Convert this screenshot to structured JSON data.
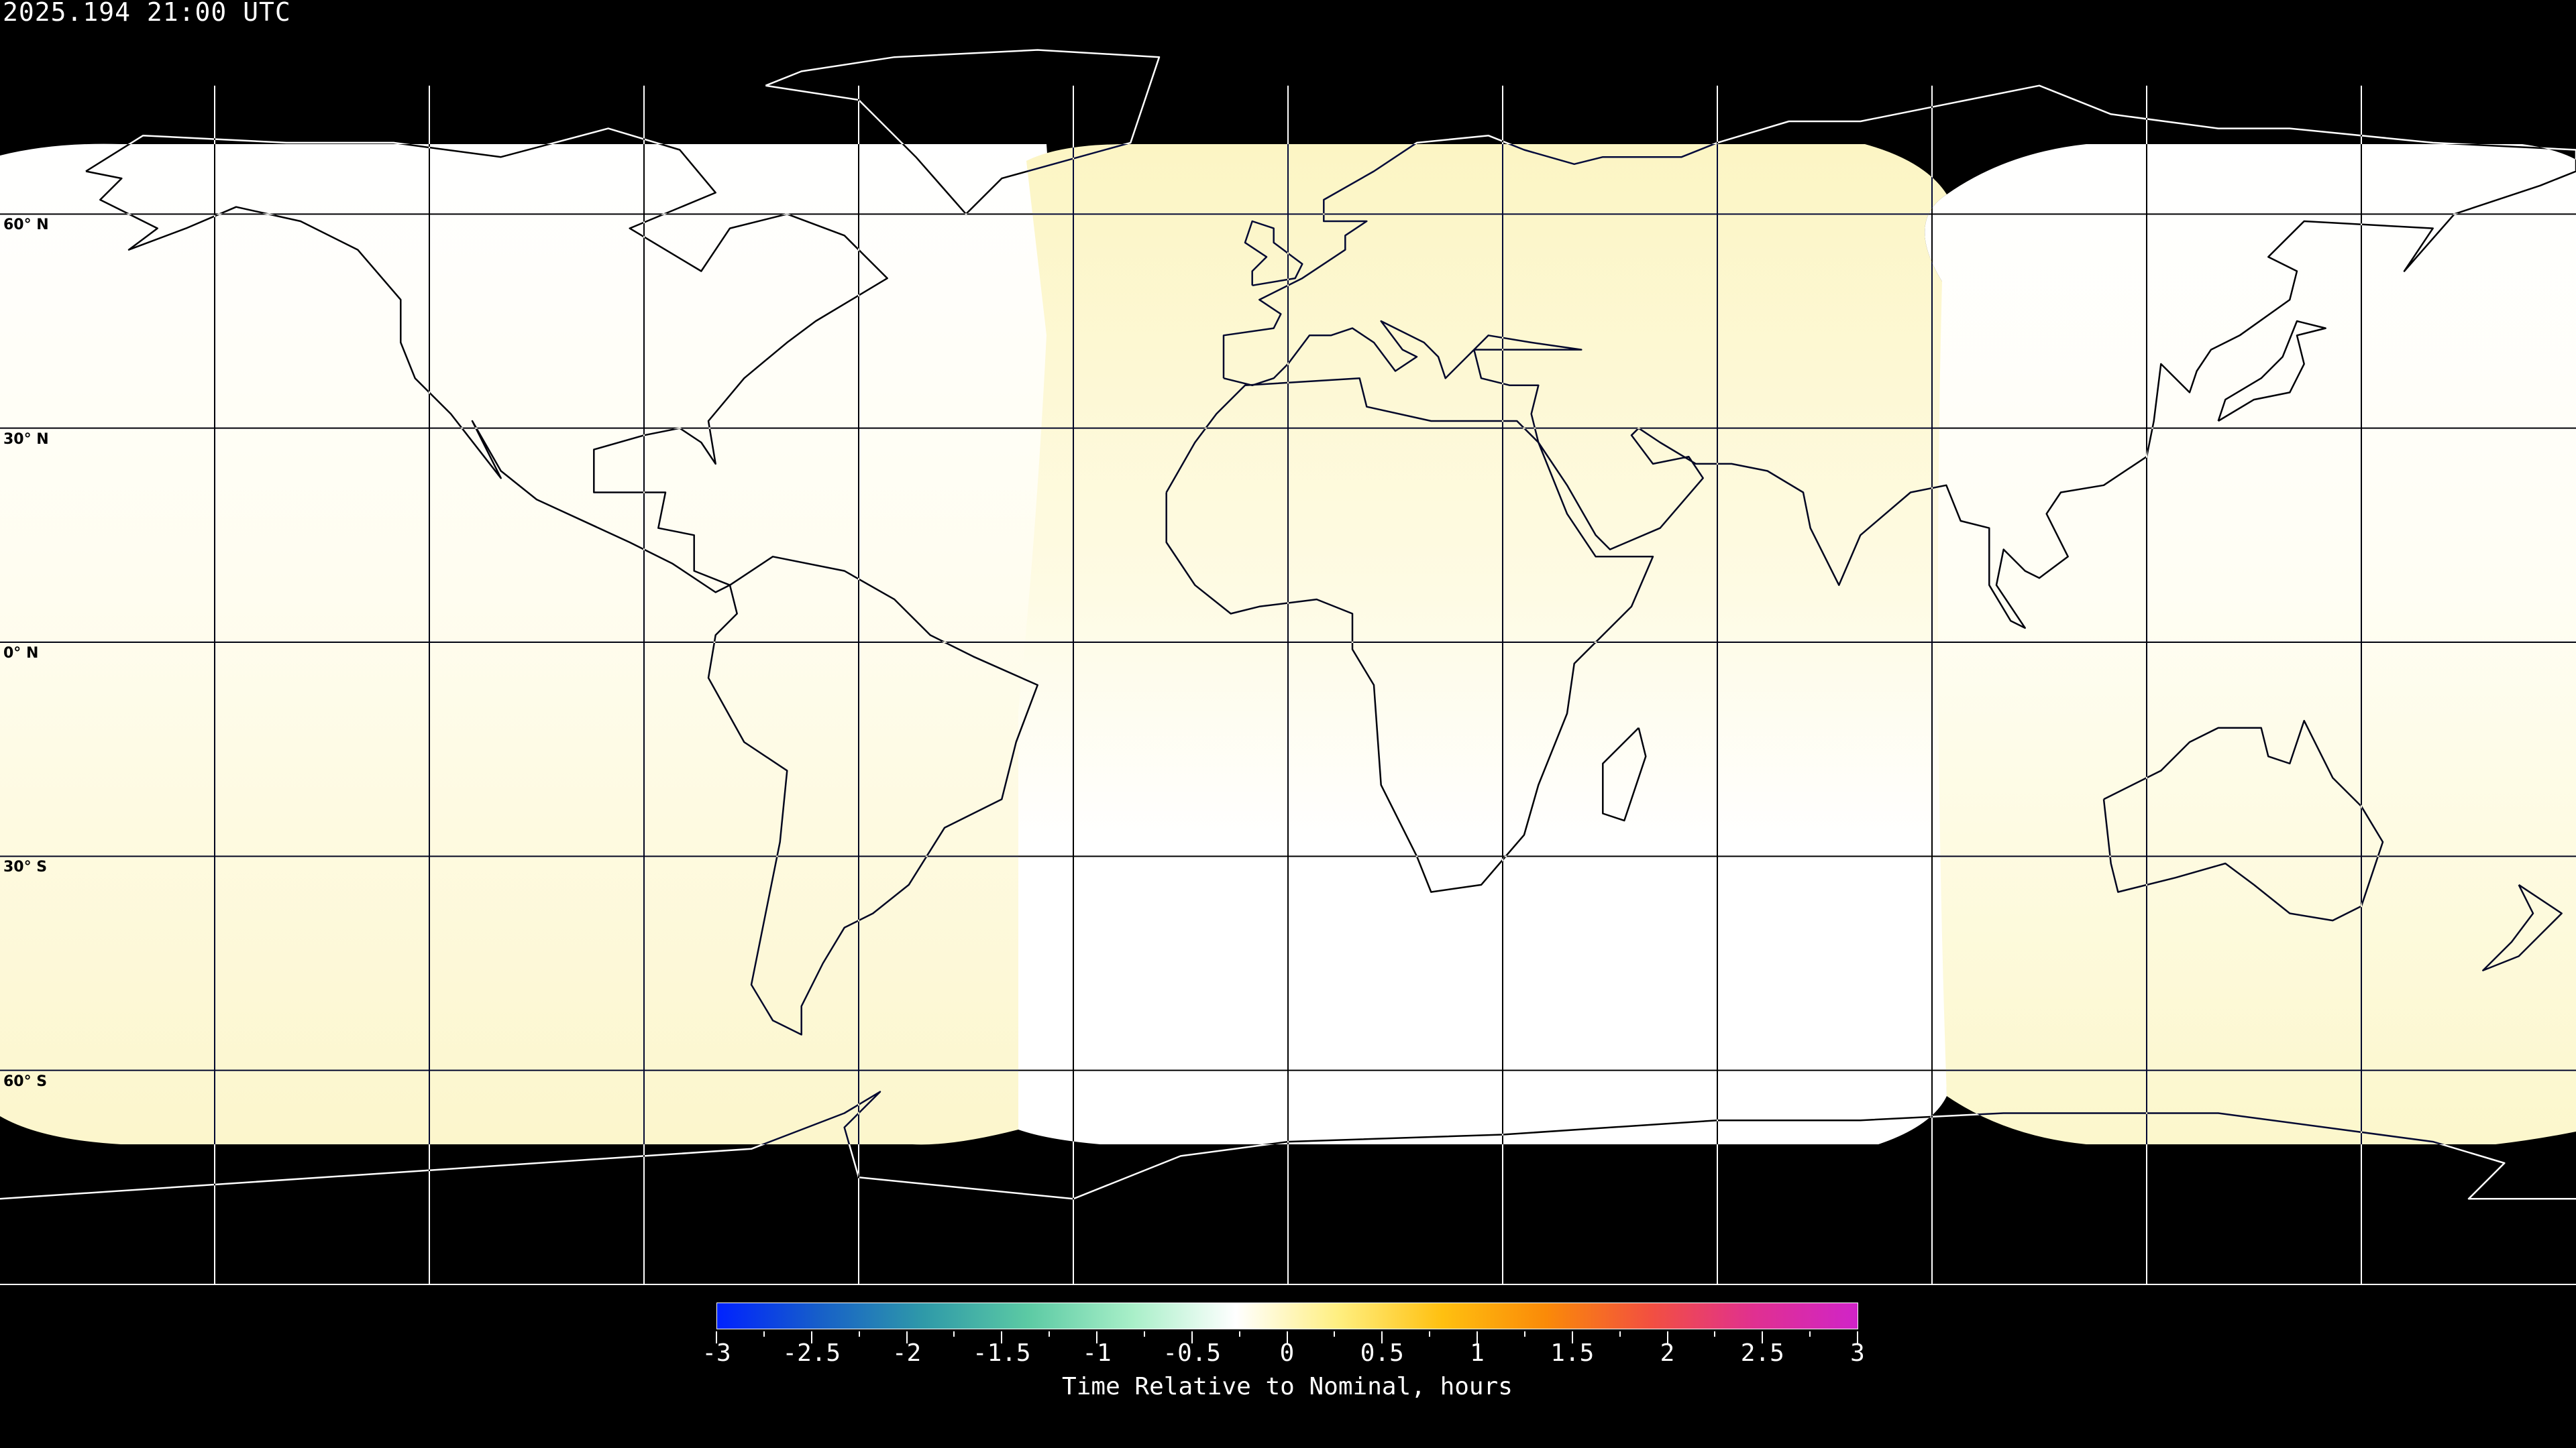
{
  "title": "2025.194 21:00 UTC",
  "map": {
    "projection": "equirectangular",
    "lat_labels": [
      {
        "lat": 60,
        "label": "60° N"
      },
      {
        "lat": 30,
        "label": "30° N"
      },
      {
        "lat": 0,
        "label": "0° N"
      },
      {
        "lat": -30,
        "label": "30° S"
      },
      {
        "lat": -60,
        "label": "60° S"
      }
    ],
    "grid_lon_step_deg": 30,
    "grid_lat_step_deg": 30,
    "no_data_color": "#000000"
  },
  "colorbar": {
    "label": "Time Relative to Nominal, hours",
    "min": -3,
    "max": 3,
    "tick_labels": [
      "-3",
      "-2.5",
      "-2",
      "-1.5",
      "-1",
      "-0.5",
      "0",
      "0.5",
      "1",
      "1.5",
      "2",
      "2.5",
      "3"
    ],
    "colors": [
      "#0022ff",
      "#1760c8",
      "#2f9aa8",
      "#5ccaa4",
      "#a8efc8",
      "#ffffff",
      "#ffef80",
      "#ffc010",
      "#fa8a08",
      "#f25040",
      "#e03090",
      "#d024c8"
    ]
  }
}
